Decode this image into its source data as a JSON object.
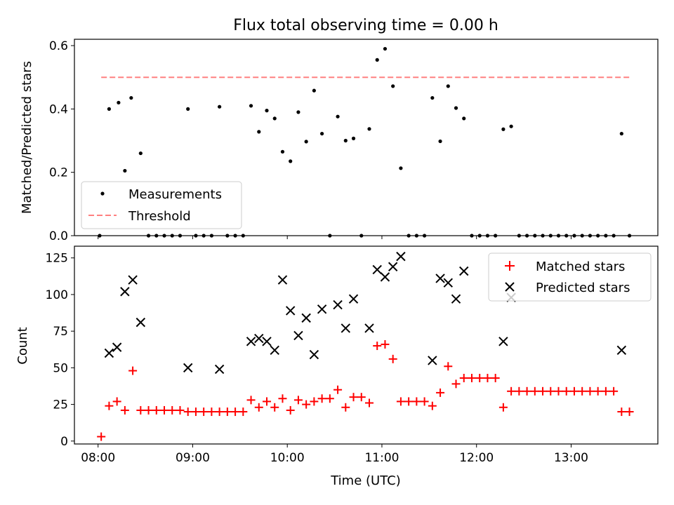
{
  "chart_data": [
    {
      "type": "scatter",
      "title": "Flux total observing time = 0.00 h",
      "xlabel": "",
      "ylabel": "Matched/Predicted stars",
      "ylim": [
        0,
        0.62
      ],
      "yticks": [
        "0.0",
        "0.2",
        "0.4",
        "0.6"
      ],
      "legend": "lower-left",
      "series": [
        {
          "name": "Measurements",
          "style": "dot",
          "color": "#000000",
          "points": [
            [
              "08:01",
              0.0
            ],
            [
              "08:07",
              0.4
            ],
            [
              "08:13",
              0.42
            ],
            [
              "08:17",
              0.205
            ],
            [
              "08:21",
              0.435
            ],
            [
              "08:27",
              0.26
            ],
            [
              "08:32",
              0.0
            ],
            [
              "08:37",
              0.0
            ],
            [
              "08:42",
              0.0
            ],
            [
              "08:47",
              0.0
            ],
            [
              "08:52",
              0.0
            ],
            [
              "08:57",
              0.4
            ],
            [
              "09:02",
              0.0
            ],
            [
              "09:07",
              0.0
            ],
            [
              "09:12",
              0.0
            ],
            [
              "09:17",
              0.407
            ],
            [
              "09:22",
              0.0
            ],
            [
              "09:27",
              0.0
            ],
            [
              "09:32",
              0.0
            ],
            [
              "09:37",
              0.41
            ],
            [
              "09:42",
              0.328
            ],
            [
              "09:47",
              0.395
            ],
            [
              "09:52",
              0.37
            ],
            [
              "09:57",
              0.265
            ],
            [
              "10:02",
              0.235
            ],
            [
              "10:07",
              0.39
            ],
            [
              "10:12",
              0.297
            ],
            [
              "10:17",
              0.458
            ],
            [
              "10:22",
              0.322
            ],
            [
              "10:27",
              0.0
            ],
            [
              "10:32",
              0.376
            ],
            [
              "10:37",
              0.3
            ],
            [
              "10:42",
              0.307
            ],
            [
              "10:47",
              0.0
            ],
            [
              "10:52",
              0.337
            ],
            [
              "10:57",
              0.555
            ],
            [
              "11:02",
              0.59
            ],
            [
              "11:07",
              0.472
            ],
            [
              "11:12",
              0.213
            ],
            [
              "11:17",
              0.0
            ],
            [
              "11:22",
              0.0
            ],
            [
              "11:27",
              0.0
            ],
            [
              "11:32",
              0.435
            ],
            [
              "11:37",
              0.298
            ],
            [
              "11:42",
              0.472
            ],
            [
              "11:47",
              0.403
            ],
            [
              "11:52",
              0.37
            ],
            [
              "11:57",
              0.0
            ],
            [
              "12:02",
              0.0
            ],
            [
              "12:07",
              0.0
            ],
            [
              "12:12",
              0.0
            ],
            [
              "12:17",
              0.336
            ],
            [
              "12:22",
              0.345
            ],
            [
              "12:27",
              0.0
            ],
            [
              "12:32",
              0.0
            ],
            [
              "12:37",
              0.0
            ],
            [
              "12:42",
              0.0
            ],
            [
              "12:47",
              0.0
            ],
            [
              "12:52",
              0.0
            ],
            [
              "12:57",
              0.0
            ],
            [
              "13:02",
              0.0
            ],
            [
              "13:07",
              0.0
            ],
            [
              "13:12",
              0.0
            ],
            [
              "13:17",
              0.0
            ],
            [
              "13:22",
              0.0
            ],
            [
              "13:27",
              0.0
            ],
            [
              "13:32",
              0.322
            ],
            [
              "13:37",
              0.0
            ]
          ]
        },
        {
          "name": "Threshold",
          "style": "dashed-line",
          "color": "#ff8080",
          "points": [
            [
              "08:02",
              0.5
            ],
            [
              "13:37",
              0.5
            ]
          ]
        }
      ]
    },
    {
      "type": "scatter",
      "title": "",
      "xlabel": "Time (UTC)",
      "ylabel": "Count",
      "ylim": [
        -2,
        133
      ],
      "yticks": [
        "0",
        "25",
        "50",
        "75",
        "100",
        "125"
      ],
      "xlim": [
        "07:45",
        "13:55"
      ],
      "xticks": [
        "08:00",
        "09:00",
        "10:00",
        "11:00",
        "12:00",
        "13:00"
      ],
      "legend": "top-right",
      "series": [
        {
          "name": "Matched stars",
          "style": "plus",
          "color": "#ff0000",
          "points": [
            [
              "08:02",
              3
            ],
            [
              "08:07",
              24
            ],
            [
              "08:12",
              27
            ],
            [
              "08:17",
              21
            ],
            [
              "08:22",
              48
            ],
            [
              "08:27",
              21
            ],
            [
              "08:32",
              21
            ],
            [
              "08:37",
              21
            ],
            [
              "08:42",
              21
            ],
            [
              "08:47",
              21
            ],
            [
              "08:52",
              21
            ],
            [
              "08:57",
              20
            ],
            [
              "09:02",
              20
            ],
            [
              "09:07",
              20
            ],
            [
              "09:12",
              20
            ],
            [
              "09:17",
              20
            ],
            [
              "09:22",
              20
            ],
            [
              "09:27",
              20
            ],
            [
              "09:32",
              20
            ],
            [
              "09:37",
              28
            ],
            [
              "09:42",
              23
            ],
            [
              "09:47",
              27
            ],
            [
              "09:52",
              23
            ],
            [
              "09:57",
              29
            ],
            [
              "10:02",
              21
            ],
            [
              "10:07",
              28
            ],
            [
              "10:12",
              25
            ],
            [
              "10:17",
              27
            ],
            [
              "10:22",
              29
            ],
            [
              "10:27",
              29
            ],
            [
              "10:32",
              35
            ],
            [
              "10:37",
              23
            ],
            [
              "10:42",
              30
            ],
            [
              "10:47",
              30
            ],
            [
              "10:52",
              26
            ],
            [
              "10:57",
              65
            ],
            [
              "11:02",
              66
            ],
            [
              "11:07",
              56
            ],
            [
              "11:12",
              27
            ],
            [
              "11:17",
              27
            ],
            [
              "11:22",
              27
            ],
            [
              "11:27",
              27
            ],
            [
              "11:32",
              24
            ],
            [
              "11:37",
              33
            ],
            [
              "11:42",
              51
            ],
            [
              "11:47",
              39
            ],
            [
              "11:52",
              43
            ],
            [
              "11:57",
              43
            ],
            [
              "12:02",
              43
            ],
            [
              "12:07",
              43
            ],
            [
              "12:12",
              43
            ],
            [
              "12:17",
              23
            ],
            [
              "12:22",
              34
            ],
            [
              "12:27",
              34
            ],
            [
              "12:32",
              34
            ],
            [
              "12:37",
              34
            ],
            [
              "12:42",
              34
            ],
            [
              "12:47",
              34
            ],
            [
              "12:52",
              34
            ],
            [
              "12:57",
              34
            ],
            [
              "13:02",
              34
            ],
            [
              "13:07",
              34
            ],
            [
              "13:12",
              34
            ],
            [
              "13:17",
              34
            ],
            [
              "13:22",
              34
            ],
            [
              "13:27",
              34
            ],
            [
              "13:32",
              20
            ],
            [
              "13:37",
              20
            ]
          ]
        },
        {
          "name": "Predicted stars",
          "style": "x",
          "color": "#000000",
          "points": [
            [
              "08:07",
              60
            ],
            [
              "08:12",
              64
            ],
            [
              "08:17",
              102
            ],
            [
              "08:22",
              110
            ],
            [
              "08:27",
              81
            ],
            [
              "08:57",
              50
            ],
            [
              "09:17",
              49
            ],
            [
              "09:37",
              68
            ],
            [
              "09:42",
              70
            ],
            [
              "09:47",
              68
            ],
            [
              "09:52",
              62
            ],
            [
              "09:57",
              110
            ],
            [
              "10:02",
              89
            ],
            [
              "10:07",
              72
            ],
            [
              "10:12",
              84
            ],
            [
              "10:17",
              59
            ],
            [
              "10:22",
              90
            ],
            [
              "10:32",
              93
            ],
            [
              "10:37",
              77
            ],
            [
              "10:42",
              97
            ],
            [
              "10:52",
              77
            ],
            [
              "10:57",
              117
            ],
            [
              "11:02",
              112
            ],
            [
              "11:07",
              119
            ],
            [
              "11:12",
              126
            ],
            [
              "11:32",
              55
            ],
            [
              "11:37",
              111
            ],
            [
              "11:42",
              108
            ],
            [
              "11:47",
              97
            ],
            [
              "11:52",
              116
            ],
            [
              "12:17",
              68
            ],
            [
              "12:22",
              98
            ],
            [
              "13:32",
              62
            ]
          ]
        }
      ]
    }
  ]
}
